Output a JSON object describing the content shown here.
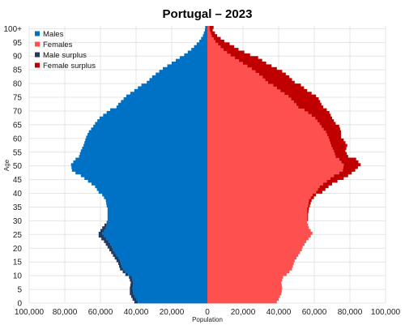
{
  "chart_data": {
    "type": "bar",
    "orientation": "horizontal",
    "title": "Portugal – 2023",
    "xlabel": "Population",
    "ylabel": "Age",
    "xlim": [
      -100000,
      100000
    ],
    "ylim": [
      0,
      101
    ],
    "x_tick_values": [
      -100000,
      -80000,
      -60000,
      -40000,
      -20000,
      0,
      20000,
      40000,
      60000,
      80000,
      100000
    ],
    "x_tick_labels": [
      "100,000",
      "80,000",
      "60,000",
      "40,000",
      "20,000",
      "0",
      "20,000",
      "40,000",
      "60,000",
      "80,000",
      "100,000"
    ],
    "y_tick_values": [
      0,
      5,
      10,
      15,
      20,
      25,
      30,
      35,
      40,
      45,
      50,
      55,
      60,
      65,
      70,
      75,
      80,
      85,
      90,
      95,
      100
    ],
    "y_tick_labels": [
      "0",
      "5",
      "10",
      "15",
      "20",
      "25",
      "30",
      "35",
      "40",
      "45",
      "50",
      "55",
      "60",
      "65",
      "70",
      "75",
      "80",
      "85",
      "90",
      "95",
      "100+"
    ],
    "grid": true,
    "legend_position": "top-left",
    "colors": {
      "males": "#0072c6",
      "females": "#ff5050",
      "male_surplus": "#233a5e",
      "female_surplus": "#c00000",
      "grid": "#e4e4e4"
    },
    "series": [
      {
        "name": "Males",
        "color": "#0072c6"
      },
      {
        "name": "Females",
        "color": "#ff5050"
      },
      {
        "name": "Male surplus",
        "color": "#233a5e"
      },
      {
        "name": "Female surplus",
        "color": "#c00000"
      }
    ],
    "age_anchors": [
      0,
      1,
      3,
      5,
      7,
      9,
      10,
      12,
      14,
      15,
      17,
      19,
      20,
      22,
      24,
      25,
      27,
      29,
      30,
      32,
      34,
      35,
      37,
      39,
      40,
      42,
      43,
      44,
      45,
      46,
      47,
      48,
      50,
      52,
      53,
      55,
      57,
      59,
      60,
      62,
      64,
      65,
      67,
      69,
      70,
      71,
      72,
      74,
      75,
      77,
      79,
      80,
      82,
      84,
      85,
      87,
      89,
      90,
      92,
      94,
      95,
      97,
      99,
      100
    ],
    "male_anchors": [
      41000,
      42000,
      43500,
      43500,
      43000,
      44000,
      46000,
      49000,
      50000,
      51000,
      53000,
      55000,
      56000,
      58000,
      61000,
      61000,
      59000,
      56500,
      56000,
      56000,
      56000,
      56500,
      57000,
      59000,
      61000,
      63000,
      65000,
      67000,
      69000,
      71000,
      74000,
      76000,
      76500,
      74000,
      72000,
      71000,
      69500,
      68500,
      68000,
      66500,
      64000,
      63000,
      60500,
      56500,
      54500,
      51000,
      50000,
      47000,
      45500,
      41000,
      37000,
      34000,
      31000,
      27000,
      25000,
      20000,
      15500,
      13000,
      9000,
      6000,
      4500,
      2500,
      1400,
      1200
    ],
    "female_anchors": [
      39000,
      40000,
      41500,
      42000,
      41500,
      42500,
      44500,
      47500,
      48500,
      49000,
      51000,
      53000,
      53500,
      55500,
      58000,
      59000,
      57000,
      56000,
      56500,
      56500,
      57000,
      57500,
      58500,
      61000,
      64500,
      68000,
      70000,
      73000,
      76500,
      79000,
      81000,
      83000,
      86000,
      83500,
      79000,
      77500,
      78500,
      76500,
      75000,
      75000,
      74000,
      72000,
      70000,
      68500,
      67000,
      65000,
      64000,
      62500,
      61000,
      56000,
      52500,
      49000,
      46000,
      42000,
      39000,
      33000,
      28500,
      24000,
      17500,
      12500,
      9500,
      5500,
      3000,
      3500
    ]
  }
}
